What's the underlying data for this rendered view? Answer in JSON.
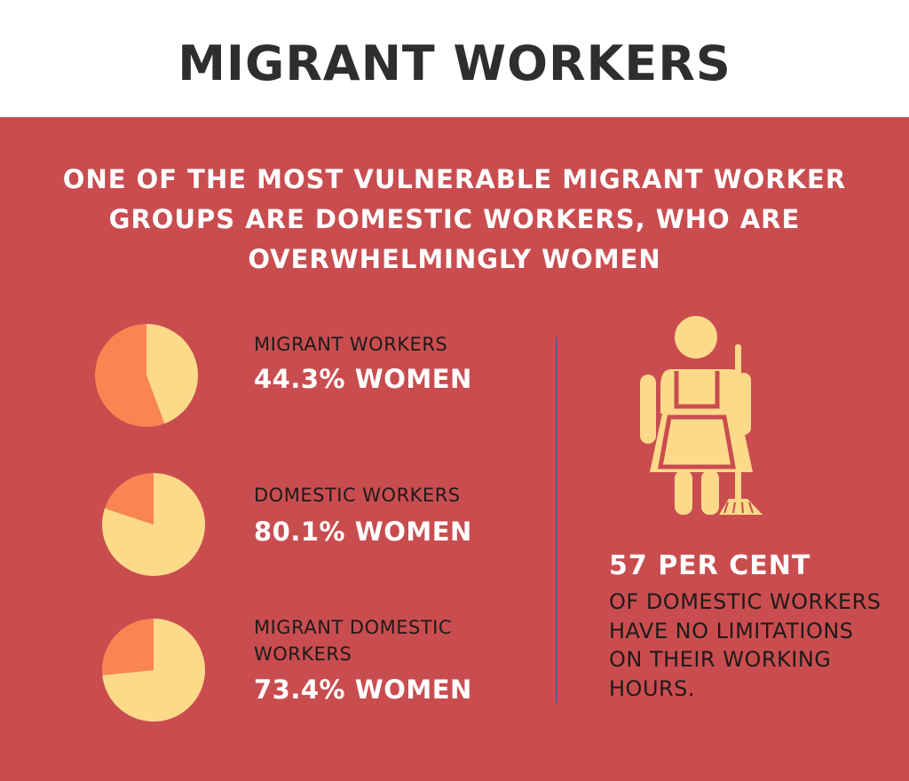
{
  "title": "MIGRANT WORKERS",
  "headline": "ONE OF THE MOST VULNERABLE MIGRANT WORKER GROUPS ARE DOMESTIC WORKERS, WHO ARE OVERWHELMINGLY WOMEN",
  "colors": {
    "header_text": "#2e2e2e",
    "panel_bg": "#c94d4f",
    "women_slice": "#fdd98a",
    "men_slice": "#f98553",
    "divider": "#5b5a8a"
  },
  "chart_data": [
    {
      "type": "pie",
      "label": "MIGRANT WORKERS",
      "value_text": "44.3% WOMEN",
      "values": [
        44.3,
        55.7
      ]
    },
    {
      "type": "pie",
      "label": "DOMESTIC WORKERS",
      "value_text": "80.1% WOMEN",
      "values": [
        80.1,
        19.9
      ]
    },
    {
      "type": "pie",
      "label": "MIGRANT DOMESTIC WORKERS",
      "value_text": "73.4% WOMEN",
      "values": [
        73.4,
        26.6
      ]
    }
  ],
  "stat": {
    "big": "57 PER CENT",
    "text": "OF DOMESTIC WORKERS HAVE NO LIMITATIONS ON THEIR WORKING HOURS."
  }
}
